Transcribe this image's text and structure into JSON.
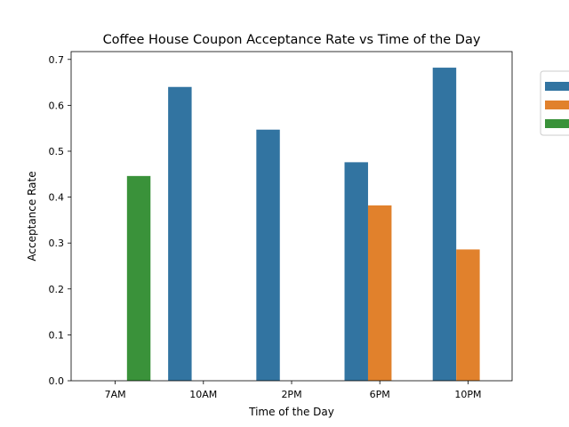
{
  "chart_data": {
    "type": "bar",
    "title": "Coffee House Coupon Acceptance Rate vs Time of the Day",
    "xlabel": "Time of the Day",
    "ylabel": "Acceptance Rate",
    "categories": [
      "7AM",
      "10AM",
      "2PM",
      "6PM",
      "10PM"
    ],
    "ylim": [
      0,
      0.717
    ],
    "yticks": [
      "0.0",
      "0.1",
      "0.2",
      "0.3",
      "0.4",
      "0.5",
      "0.6",
      "0.7"
    ],
    "grid": false,
    "legend_position": "upper-right, outside plot",
    "series": [
      {
        "color": "#3274a1",
        "values": [
          null,
          0.64,
          0.547,
          0.476,
          0.682
        ]
      },
      {
        "color": "#e1812c",
        "values": [
          null,
          null,
          null,
          0.382,
          0.286
        ]
      },
      {
        "color": "#3a923a",
        "values": [
          0.446,
          null,
          null,
          null,
          null
        ]
      }
    ]
  }
}
